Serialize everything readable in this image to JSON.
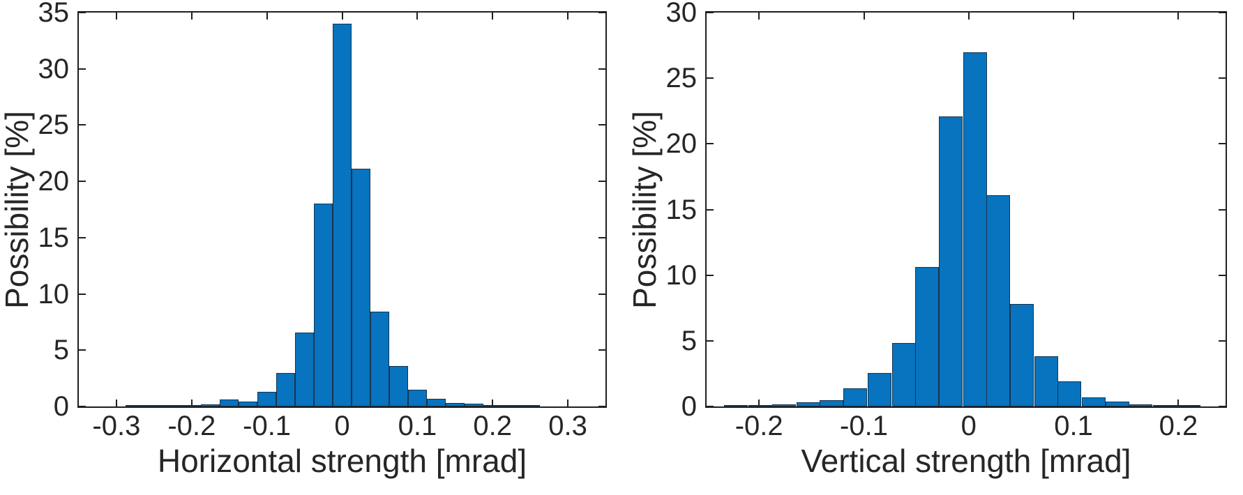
{
  "colors": {
    "bar_fill": "#0873BE",
    "bar_edge": "#16344F",
    "axis": "#1f1f1f",
    "text": "#262626",
    "background": "#ffffff"
  },
  "charts": [
    {
      "id": "horizontal",
      "xlabel": "Horizontal strength [mrad]",
      "ylabel": "Possibility [%]",
      "chart_data": {
        "type": "bar",
        "subtype": "histogram",
        "title": "",
        "xlim": [
          -0.35,
          0.35
        ],
        "ylim": [
          0,
          35
        ],
        "grid": false,
        "legend": null,
        "xtick_values": [
          -0.3,
          -0.2,
          -0.1,
          0,
          0.1,
          0.2,
          0.3
        ],
        "xtick_labels": [
          "-0.3",
          "-0.2",
          "-0.1",
          "0",
          "0.1",
          "0.2",
          "0.3"
        ],
        "ytick_values": [
          0,
          5,
          10,
          15,
          20,
          25,
          30,
          35
        ],
        "ytick_labels": [
          "0",
          "5",
          "10",
          "15",
          "20",
          "25",
          "30",
          "35"
        ],
        "bin_width": 0.025,
        "bin_centers": [
          -0.275,
          -0.25,
          -0.225,
          -0.2,
          -0.175,
          -0.15,
          -0.125,
          -0.1,
          -0.075,
          -0.05,
          -0.025,
          0,
          0.025,
          0.05,
          0.075,
          0.1,
          0.125,
          0.15,
          0.175,
          0.2,
          0.225,
          0.25
        ],
        "values": [
          0.05,
          0.08,
          0.05,
          0.12,
          0.2,
          0.6,
          0.45,
          1.3,
          3.0,
          6.6,
          18.0,
          34.0,
          21.1,
          8.4,
          3.6,
          1.5,
          0.7,
          0.3,
          0.25,
          0.12,
          0.06,
          0.04
        ]
      }
    },
    {
      "id": "vertical",
      "xlabel": "Vertical strength [mrad]",
      "ylabel": "Possibility [%]",
      "chart_data": {
        "type": "bar",
        "subtype": "histogram",
        "title": "",
        "xlim": [
          -0.25,
          0.245
        ],
        "ylim": [
          0,
          30
        ],
        "grid": false,
        "legend": null,
        "xtick_values": [
          -0.2,
          -0.1,
          0,
          0.1,
          0.2
        ],
        "xtick_labels": [
          "-0.2",
          "-0.1",
          "0",
          "0.1",
          "0.2"
        ],
        "ytick_values": [
          0,
          5,
          10,
          15,
          20,
          25,
          30
        ],
        "ytick_labels": [
          "0",
          "5",
          "10",
          "15",
          "20",
          "25",
          "30"
        ],
        "bin_width": 0.0227,
        "bin_centers": [
          -0.222,
          -0.199,
          -0.176,
          -0.153,
          -0.131,
          -0.108,
          -0.085,
          -0.062,
          -0.04,
          -0.017,
          0.006,
          0.028,
          0.051,
          0.074,
          0.096,
          0.119,
          0.142,
          0.164,
          0.187,
          0.21
        ],
        "values": [
          0.05,
          0.1,
          0.15,
          0.3,
          0.5,
          1.4,
          2.55,
          4.85,
          10.6,
          22.1,
          27.0,
          16.1,
          7.8,
          3.8,
          1.9,
          0.7,
          0.4,
          0.15,
          0.1,
          0.05
        ]
      }
    }
  ]
}
